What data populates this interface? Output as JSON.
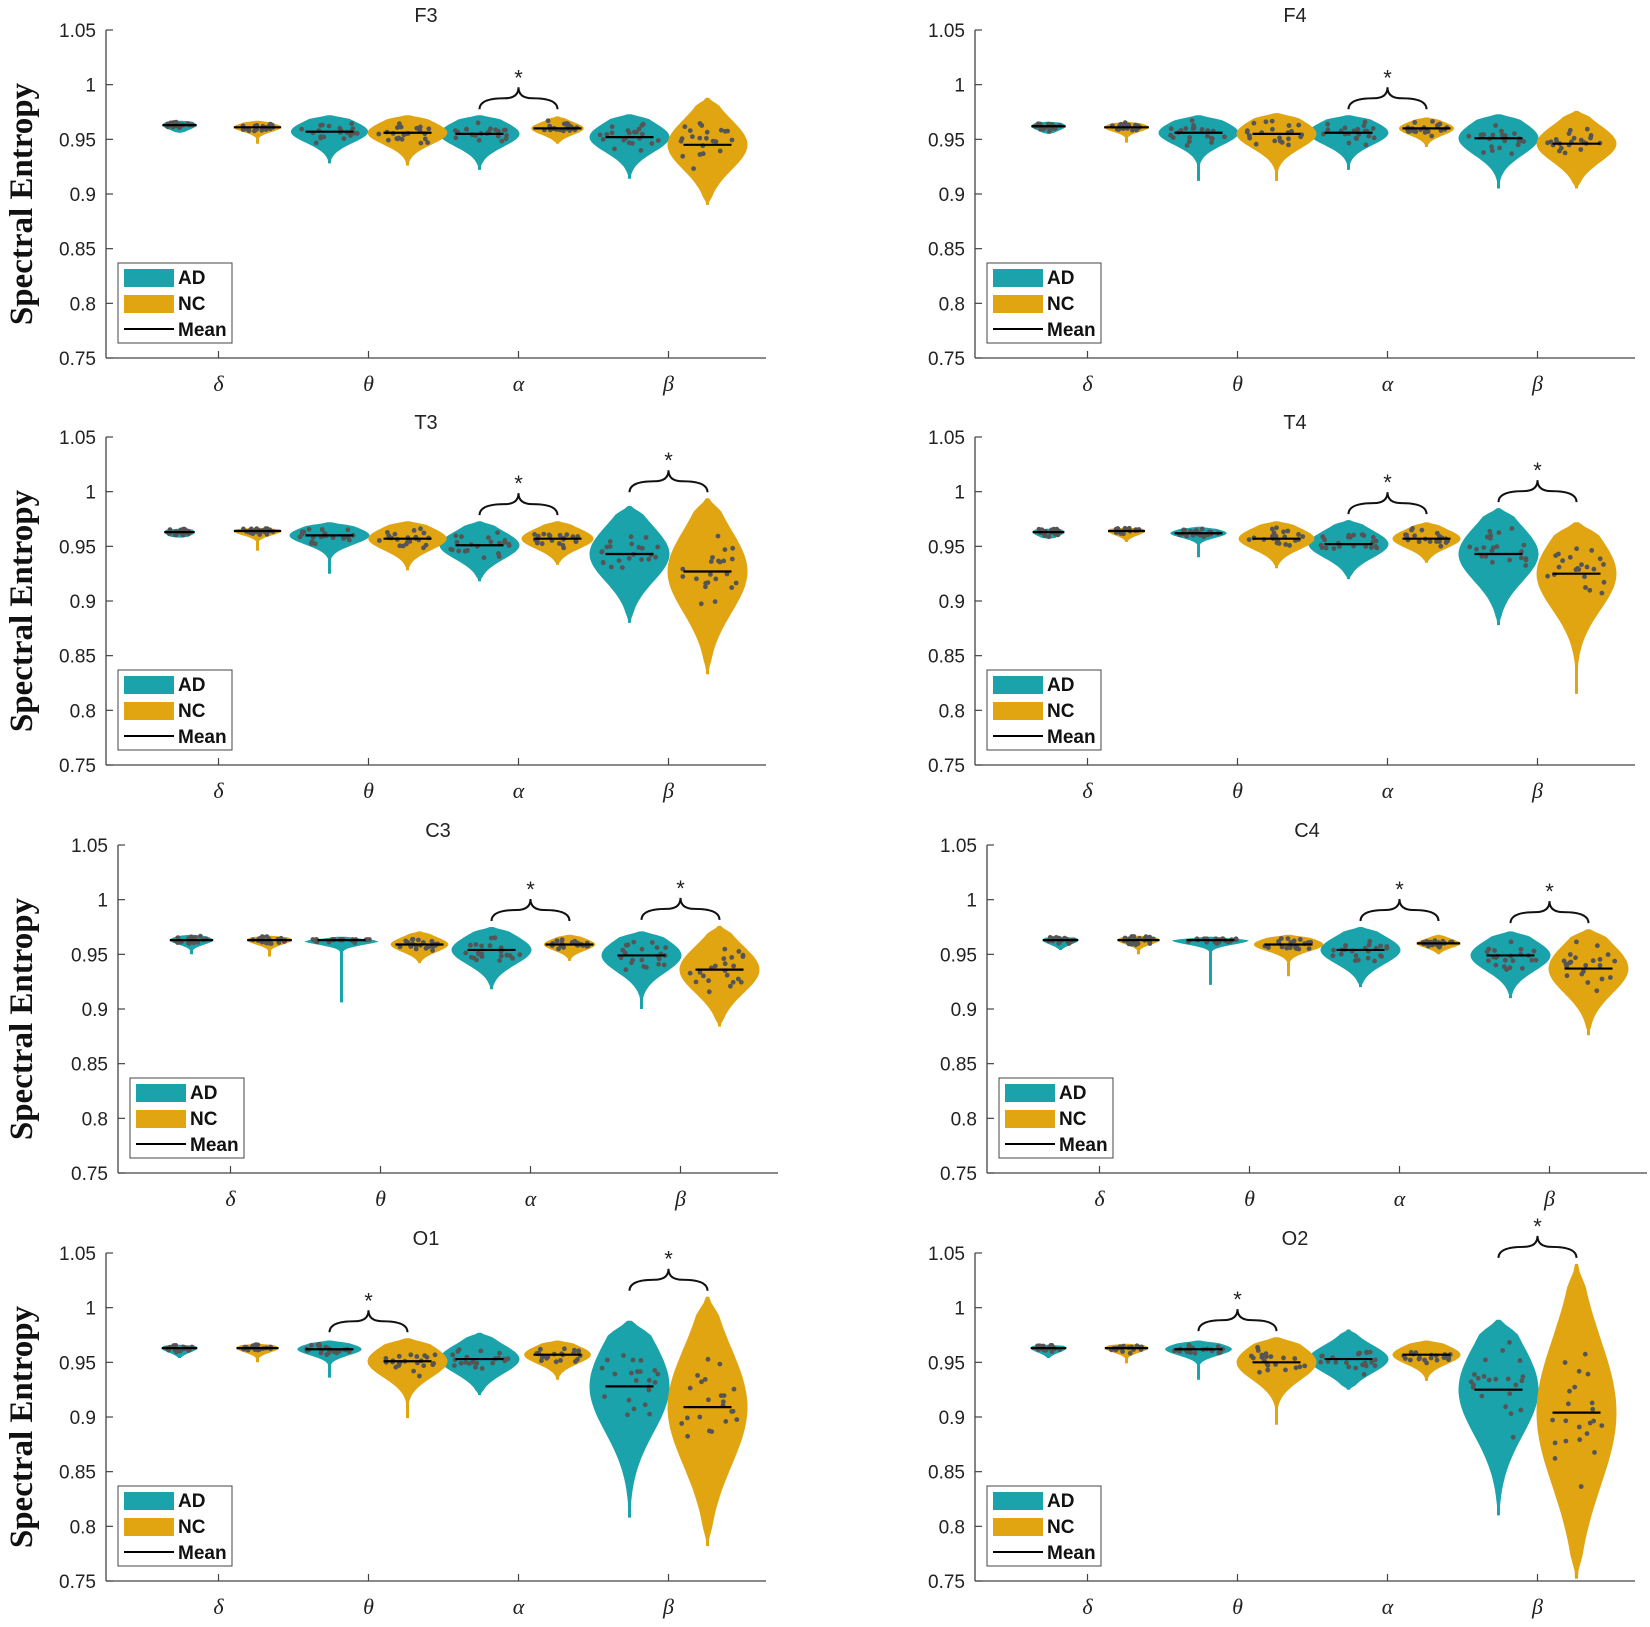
{
  "figure": {
    "ylabel": "Spectral Entropy",
    "categories": [
      "δ",
      "θ",
      "α",
      "β"
    ],
    "groups": [
      "AD",
      "NC"
    ],
    "colors": {
      "AD": "#1aa3ab",
      "NC": "#e1a512",
      "dot": "#555555",
      "axis": "#444444",
      "mean": "#000000"
    },
    "legend": {
      "entries": [
        "AD",
        "NC",
        "Mean"
      ],
      "position": "lower-left"
    },
    "ylim": [
      0.75,
      1.05
    ],
    "yticks": [
      "0.75",
      "0.8",
      "0.85",
      "0.9",
      "0.95",
      "1",
      "1.05"
    ],
    "significance_marker": "*"
  },
  "chart_data": [
    {
      "type": "violin",
      "title": "F3",
      "ylim": [
        0.75,
        1.05
      ],
      "categories": [
        "δ",
        "θ",
        "α",
        "β"
      ],
      "series": [
        {
          "name": "AD",
          "mean": [
            0.963,
            0.957,
            0.955,
            0.952
          ],
          "min": [
            0.956,
            0.928,
            0.922,
            0.914
          ],
          "max": [
            0.967,
            0.972,
            0.972,
            0.973
          ]
        },
        {
          "name": "NC",
          "mean": [
            0.961,
            0.956,
            0.96,
            0.945
          ],
          "min": [
            0.946,
            0.926,
            0.946,
            0.89
          ],
          "max": [
            0.967,
            0.972,
            0.971,
            0.988
          ]
        }
      ],
      "significant": [
        "α"
      ]
    },
    {
      "type": "violin",
      "title": "F4",
      "ylim": [
        0.75,
        1.05
      ],
      "categories": [
        "δ",
        "θ",
        "α",
        "β"
      ],
      "series": [
        {
          "name": "AD",
          "mean": [
            0.962,
            0.956,
            0.956,
            0.951
          ],
          "min": [
            0.955,
            0.912,
            0.922,
            0.905
          ],
          "max": [
            0.966,
            0.972,
            0.972,
            0.973
          ]
        },
        {
          "name": "NC",
          "mean": [
            0.961,
            0.955,
            0.96,
            0.946
          ],
          "min": [
            0.947,
            0.912,
            0.943,
            0.905
          ],
          "max": [
            0.966,
            0.974,
            0.97,
            0.976
          ]
        }
      ],
      "significant": [
        "α"
      ]
    },
    {
      "type": "violin",
      "title": "T3",
      "ylim": [
        0.75,
        1.05
      ],
      "categories": [
        "δ",
        "θ",
        "α",
        "β"
      ],
      "series": [
        {
          "name": "AD",
          "mean": [
            0.963,
            0.96,
            0.951,
            0.943
          ],
          "min": [
            0.958,
            0.925,
            0.918,
            0.88
          ],
          "max": [
            0.966,
            0.972,
            0.973,
            0.987
          ]
        },
        {
          "name": "NC",
          "mean": [
            0.964,
            0.957,
            0.957,
            0.927
          ],
          "min": [
            0.946,
            0.928,
            0.933,
            0.833
          ],
          "max": [
            0.967,
            0.973,
            0.973,
            0.994
          ]
        }
      ],
      "significant": [
        "α",
        "β"
      ]
    },
    {
      "type": "violin",
      "title": "T4",
      "ylim": [
        0.75,
        1.05
      ],
      "categories": [
        "δ",
        "θ",
        "α",
        "β"
      ],
      "series": [
        {
          "name": "AD",
          "mean": [
            0.963,
            0.962,
            0.952,
            0.943
          ],
          "min": [
            0.957,
            0.94,
            0.92,
            0.878
          ],
          "max": [
            0.966,
            0.968,
            0.974,
            0.985
          ]
        },
        {
          "name": "NC",
          "mean": [
            0.964,
            0.957,
            0.957,
            0.925
          ],
          "min": [
            0.954,
            0.93,
            0.935,
            0.815
          ],
          "max": [
            0.967,
            0.973,
            0.972,
            0.972
          ]
        }
      ],
      "significant": [
        "α",
        "β"
      ]
    },
    {
      "type": "violin",
      "title": "C3",
      "ylim": [
        0.75,
        1.05
      ],
      "categories": [
        "δ",
        "θ",
        "α",
        "β"
      ],
      "series": [
        {
          "name": "AD",
          "mean": [
            0.963,
            0.963,
            0.954,
            0.949
          ],
          "min": [
            0.95,
            0.906,
            0.918,
            0.9
          ],
          "max": [
            0.968,
            0.966,
            0.975,
            0.971
          ]
        },
        {
          "name": "NC",
          "mean": [
            0.963,
            0.959,
            0.959,
            0.936
          ],
          "min": [
            0.948,
            0.942,
            0.944,
            0.884
          ],
          "max": [
            0.967,
            0.971,
            0.968,
            0.976
          ]
        }
      ],
      "significant": [
        "α",
        "β"
      ]
    },
    {
      "type": "violin",
      "title": "C4",
      "ylim": [
        0.75,
        1.05
      ],
      "categories": [
        "δ",
        "θ",
        "α",
        "β"
      ],
      "series": [
        {
          "name": "AD",
          "mean": [
            0.963,
            0.963,
            0.954,
            0.949
          ],
          "min": [
            0.954,
            0.922,
            0.92,
            0.91
          ],
          "max": [
            0.966,
            0.966,
            0.975,
            0.971
          ]
        },
        {
          "name": "NC",
          "mean": [
            0.963,
            0.959,
            0.96,
            0.937
          ],
          "min": [
            0.95,
            0.93,
            0.95,
            0.876
          ],
          "max": [
            0.967,
            0.968,
            0.968,
            0.973
          ]
        }
      ],
      "significant": [
        "α",
        "β"
      ]
    },
    {
      "type": "violin",
      "title": "O1",
      "ylim": [
        0.75,
        1.05
      ],
      "categories": [
        "δ",
        "θ",
        "α",
        "β"
      ],
      "series": [
        {
          "name": "AD",
          "mean": [
            0.963,
            0.962,
            0.953,
            0.928
          ],
          "min": [
            0.954,
            0.936,
            0.92,
            0.808
          ],
          "max": [
            0.966,
            0.97,
            0.977,
            0.988
          ]
        },
        {
          "name": "NC",
          "mean": [
            0.963,
            0.951,
            0.957,
            0.909
          ],
          "min": [
            0.95,
            0.899,
            0.934,
            0.782
          ],
          "max": [
            0.967,
            0.972,
            0.97,
            1.01
          ]
        }
      ],
      "significant": [
        "θ",
        "β"
      ]
    },
    {
      "type": "violin",
      "title": "O2",
      "ylim": [
        0.75,
        1.05
      ],
      "categories": [
        "δ",
        "θ",
        "α",
        "β"
      ],
      "series": [
        {
          "name": "AD",
          "mean": [
            0.963,
            0.962,
            0.953,
            0.925
          ],
          "min": [
            0.954,
            0.934,
            0.925,
            0.81
          ],
          "max": [
            0.966,
            0.97,
            0.98,
            0.989
          ]
        },
        {
          "name": "NC",
          "mean": [
            0.963,
            0.95,
            0.957,
            0.904
          ],
          "min": [
            0.949,
            0.893,
            0.933,
            0.752
          ],
          "max": [
            0.967,
            0.973,
            0.97,
            1.04
          ]
        }
      ],
      "significant": [
        "θ",
        "β"
      ]
    }
  ]
}
